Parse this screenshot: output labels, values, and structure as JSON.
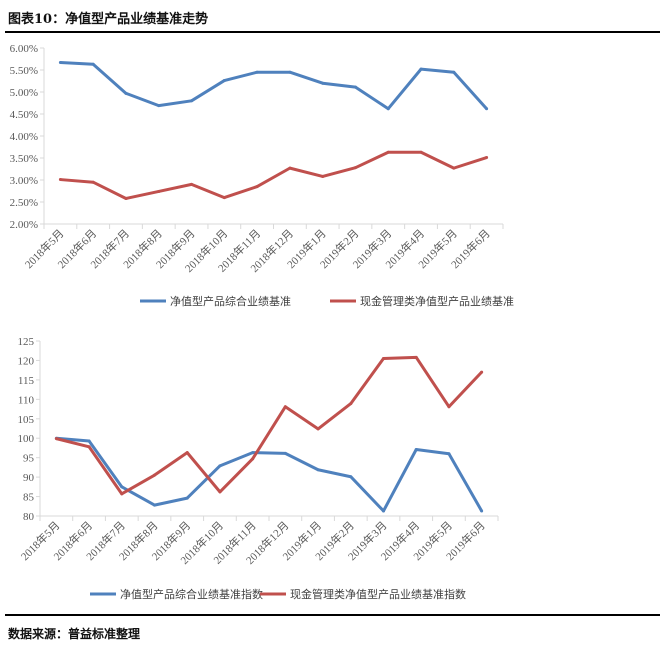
{
  "title": "图表10：净值型产品业绩基准走势",
  "source": "数据来源：普益标准整理",
  "colors": {
    "series1": "#4F81BD",
    "series2": "#C0504D"
  },
  "chart_data": [
    {
      "type": "line",
      "categories": [
        "2018年5月",
        "2018年6月",
        "2018年7月",
        "2018年8月",
        "2018年9月",
        "2018年10月",
        "2018年11月",
        "2018年12月",
        "2019年1月",
        "2019年2月",
        "2019年3月",
        "2019年4月",
        "2019年5月",
        "2019年6月"
      ],
      "yticks": [
        "2.00%",
        "2.50%",
        "3.00%",
        "3.50%",
        "4.00%",
        "4.50%",
        "5.00%",
        "5.50%",
        "6.00%"
      ],
      "ylim": [
        2.0,
        6.0
      ],
      "unit": "%",
      "legend": "bottom",
      "grid": false,
      "series": [
        {
          "name": "净值型产品综合业绩基准",
          "values": [
            5.67,
            5.63,
            4.97,
            4.69,
            4.8,
            5.26,
            5.45,
            5.45,
            5.2,
            5.11,
            4.62,
            5.52,
            5.45,
            4.62
          ]
        },
        {
          "name": "现金管理类净值型产品业绩基准",
          "values": [
            3.01,
            2.95,
            2.58,
            2.74,
            2.9,
            2.6,
            2.85,
            3.27,
            3.08,
            3.28,
            3.63,
            3.63,
            3.27,
            3.51
          ]
        }
      ]
    },
    {
      "type": "line",
      "categories": [
        "2018年5月",
        "2018年6月",
        "2018年7月",
        "2018年8月",
        "2018年9月",
        "2018年10月",
        "2018年11月",
        "2018年12月",
        "2019年1月",
        "2019年2月",
        "2019年3月",
        "2019年4月",
        "2019年5月",
        "2019年6月"
      ],
      "yticks": [
        "80",
        "85",
        "90",
        "95",
        "100",
        "105",
        "110",
        "115",
        "120",
        "125"
      ],
      "ylim": [
        80,
        125
      ],
      "legend": "bottom",
      "grid": false,
      "series": [
        {
          "name": "净值型产品综合业绩基准指数",
          "values": [
            100,
            99.3,
            87.5,
            82.8,
            84.6,
            92.9,
            96.3,
            96.1,
            91.9,
            90.1,
            81.3,
            97.1,
            96.0,
            81.3
          ]
        },
        {
          "name": "现金管理类净值型产品业绩基准指数",
          "values": [
            99.9,
            97.8,
            85.7,
            90.5,
            96.3,
            86.2,
            94.7,
            108.1,
            102.4,
            108.9,
            120.5,
            120.8,
            108.1,
            117.0
          ]
        }
      ]
    }
  ]
}
